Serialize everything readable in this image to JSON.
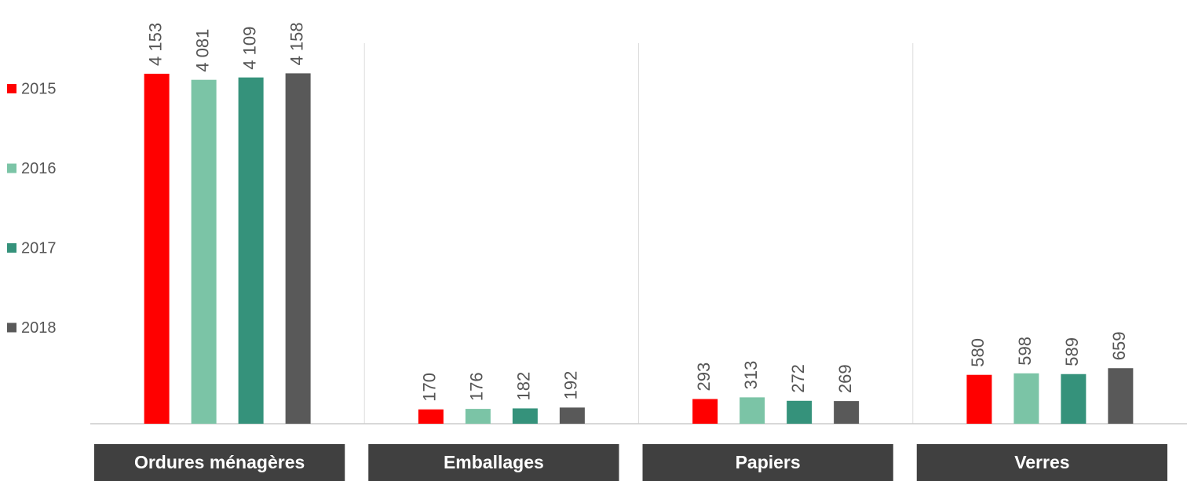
{
  "chart_data": {
    "type": "bar",
    "categories": [
      "Ordures ménagères",
      "Emballages",
      "Papiers",
      "Verres"
    ],
    "series": [
      {
        "name": "2015",
        "color": "#ff0000",
        "values": [
          4153,
          170,
          293,
          580
        ],
        "value_labels": [
          "4 153",
          "170",
          "293",
          "580"
        ]
      },
      {
        "name": "2016",
        "color": "#7bc4a6",
        "values": [
          4081,
          176,
          313,
          598
        ],
        "value_labels": [
          "4 081",
          "176",
          "313",
          "598"
        ]
      },
      {
        "name": "2017",
        "color": "#35927b",
        "values": [
          4109,
          182,
          272,
          589
        ],
        "value_labels": [
          "4 109",
          "182",
          "272",
          "589"
        ]
      },
      {
        "name": "2018",
        "color": "#595959",
        "values": [
          4158,
          192,
          269,
          659
        ],
        "value_labels": [
          "4 158",
          "192",
          "269",
          "659"
        ]
      }
    ],
    "ylim": [
      0,
      5000
    ],
    "legend": "left"
  }
}
